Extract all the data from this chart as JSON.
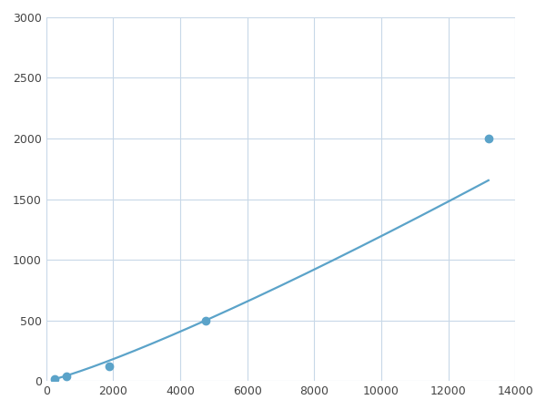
{
  "x_data": [
    250,
    600,
    1875,
    4750,
    13200
  ],
  "y_data": [
    20,
    40,
    120,
    500,
    2000
  ],
  "line_color": "#5ba3c9",
  "marker_color": "#5ba3c9",
  "marker_size": 6,
  "line_width": 1.6,
  "xlim": [
    0,
    14000
  ],
  "ylim": [
    0,
    3000
  ],
  "xticks": [
    0,
    2000,
    4000,
    6000,
    8000,
    10000,
    12000,
    14000
  ],
  "yticks": [
    0,
    500,
    1000,
    1500,
    2000,
    2500,
    3000
  ],
  "grid_color": "#c8d8e8",
  "background_color": "#ffffff",
  "fig_width": 6.0,
  "fig_height": 4.5,
  "dpi": 100
}
